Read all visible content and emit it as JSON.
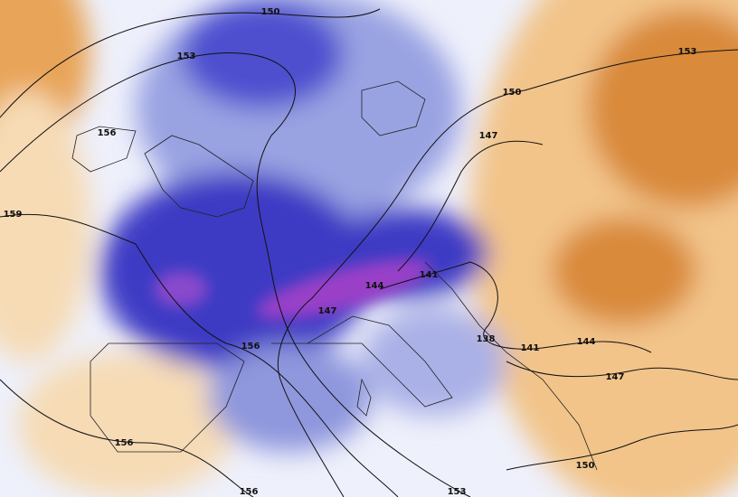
{
  "map": {
    "contour_labels": [
      "150",
      "153",
      "153",
      "150",
      "156",
      "147",
      "159",
      "141",
      "144",
      "147",
      "156",
      "138",
      "141",
      "144",
      "147",
      "156",
      "150",
      "156",
      "153"
    ]
  }
}
